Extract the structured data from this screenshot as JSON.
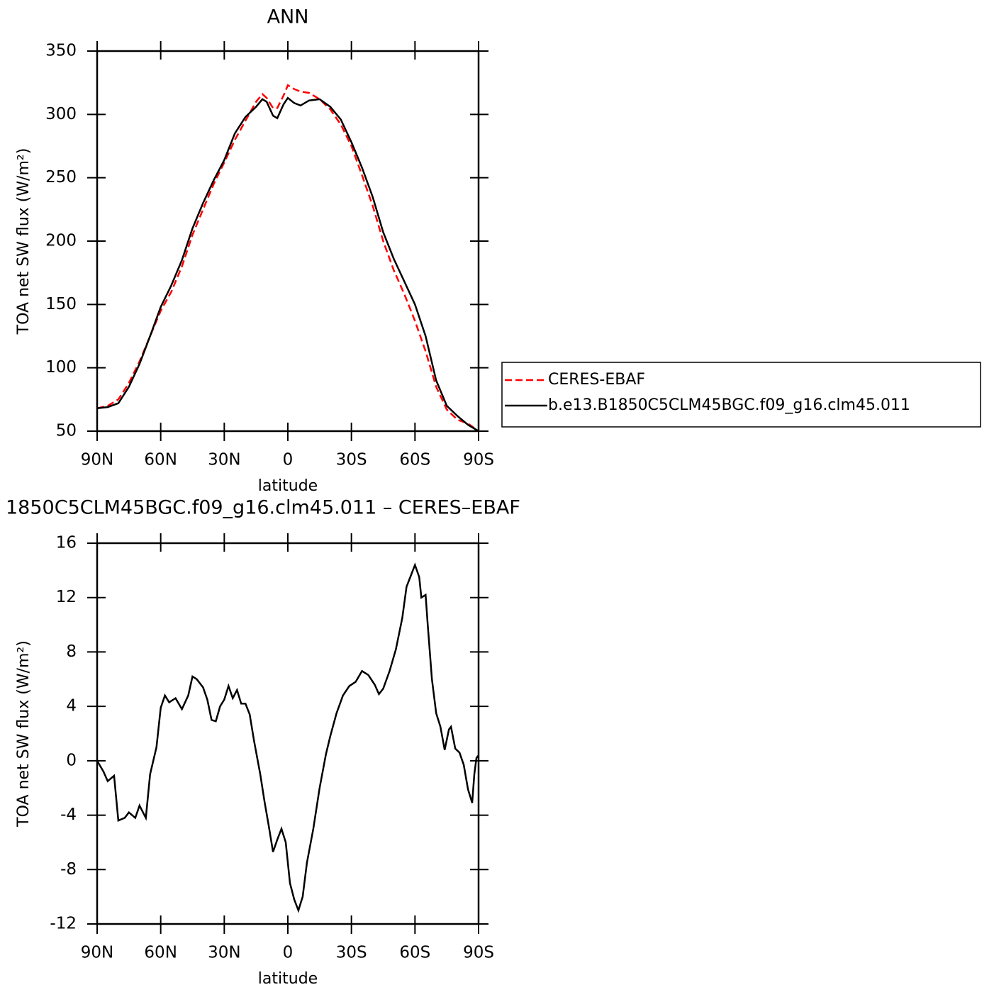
{
  "chart_data": [
    {
      "type": "line",
      "title": "ANN",
      "x_label": "latitude",
      "y_label": "TOA net SW flux (W/m²)",
      "x": [
        90,
        85,
        80,
        75,
        70,
        65,
        60,
        55,
        50,
        45,
        40,
        35,
        30,
        25,
        20,
        15,
        12,
        10,
        7,
        5,
        2,
        0,
        -3,
        -6,
        -10,
        -15,
        -20,
        -25,
        -30,
        -35,
        -40,
        -45,
        -50,
        -55,
        -60,
        -65,
        -70,
        -75,
        -80,
        -85,
        -90
      ],
      "series": [
        {
          "name": "CERES-EBAF",
          "color": "#ff0000",
          "dashed": true,
          "values": [
            68,
            70,
            75,
            88,
            105,
            125,
            145,
            160,
            180,
            205,
            225,
            245,
            262,
            280,
            295,
            310,
            316,
            313,
            305,
            305,
            315,
            323,
            320,
            318,
            317,
            312,
            304,
            292,
            275,
            252,
            228,
            200,
            177,
            158,
            137,
            113,
            85,
            67,
            59,
            56,
            50
          ]
        },
        {
          "name": "b.e13.B1850C5CLM45BGC.f09_g16.clm45.011",
          "color": "#000000",
          "dashed": false,
          "values": [
            68,
            69,
            72,
            85,
            103,
            125,
            148,
            165,
            185,
            210,
            230,
            248,
            264,
            285,
            298,
            306,
            312,
            310,
            299,
            297,
            308,
            313,
            309,
            307,
            311,
            312,
            306,
            296,
            278,
            258,
            235,
            207,
            186,
            168,
            150,
            125,
            90,
            70,
            62,
            55,
            50
          ]
        }
      ],
      "xlim": [
        90,
        -90
      ],
      "xticks": [
        {
          "value": 90,
          "label": "90N"
        },
        {
          "value": 60,
          "label": "60N"
        },
        {
          "value": 30,
          "label": "30N"
        },
        0,
        {
          "value": -30,
          "label": "30S"
        },
        {
          "value": -60,
          "label": "60S"
        },
        {
          "value": -90,
          "label": "90S"
        }
      ],
      "ylim": [
        50,
        350
      ],
      "yticks": [
        50,
        100,
        150,
        200,
        250,
        300,
        350
      ],
      "legend": "right"
    },
    {
      "type": "line",
      "title": "1850C5CLM45BGC.f09_g16.clm45.011 – CERES–EBAF",
      "x_label": "latitude",
      "y_label": "TOA net SW flux (W/m²)",
      "x": [
        90,
        87,
        85,
        82,
        80,
        77,
        75,
        72,
        70,
        67,
        65,
        62,
        60,
        58,
        56,
        53,
        50,
        47,
        45,
        43,
        40,
        38,
        36,
        34,
        32,
        30,
        28,
        26,
        24,
        22,
        20,
        18,
        16,
        13,
        11,
        9,
        7,
        5,
        3,
        1,
        -1,
        -3,
        -5,
        -7,
        -9,
        -12,
        -15,
        -18,
        -20,
        -23,
        -26,
        -29,
        -32,
        -35,
        -38,
        -41,
        -43,
        -45,
        -48,
        -51,
        -54,
        -56,
        -58,
        -60,
        -62,
        -63,
        -65,
        -66,
        -68,
        -70,
        -72,
        -74,
        -76,
        -77,
        -79,
        -81,
        -83,
        -85,
        -87,
        -88,
        -89,
        -90
      ],
      "series": [
        {
          "color": "#000000",
          "dashed": false,
          "values": [
            0,
            -0.8,
            -1.5,
            -1.1,
            -4.4,
            -4.2,
            -3.8,
            -4.2,
            -3.3,
            -4.2,
            -1,
            1,
            3.9,
            4.8,
            4.3,
            4.6,
            3.8,
            4.8,
            6.2,
            6.0,
            5.4,
            4.5,
            3.0,
            2.9,
            4.0,
            4.5,
            5.5,
            4.6,
            5.2,
            4.2,
            4.2,
            3.4,
            1.5,
            -1,
            -3,
            -4.8,
            -6.7,
            -5.8,
            -5.0,
            -6,
            -9,
            -10.2,
            -11.0,
            -10,
            -7.5,
            -5,
            -2,
            0.5,
            1.8,
            3.5,
            4.8,
            5.5,
            5.8,
            6.6,
            6.3,
            5.6,
            4.9,
            5.3,
            6.6,
            8.2,
            10.5,
            12.8,
            13.6,
            14.4,
            13.5,
            12.0,
            12.2,
            10,
            6,
            3.5,
            2.5,
            0.8,
            2.3,
            2.5,
            0.9,
            0.6,
            -0.3,
            -2.1,
            -3.1,
            -1,
            0.2,
            0.4
          ]
        }
      ],
      "xlim": [
        90,
        -90
      ],
      "xticks": [
        {
          "value": 90,
          "label": "90N"
        },
        {
          "value": 60,
          "label": "60N"
        },
        {
          "value": 30,
          "label": "30N"
        },
        0,
        {
          "value": -30,
          "label": "30S"
        },
        {
          "value": -60,
          "label": "60S"
        },
        {
          "value": -90,
          "label": "90S"
        }
      ],
      "ylim": [
        -12,
        16
      ],
      "yticks": [
        -12,
        -8,
        -4,
        0,
        4,
        8,
        12,
        16
      ]
    }
  ]
}
